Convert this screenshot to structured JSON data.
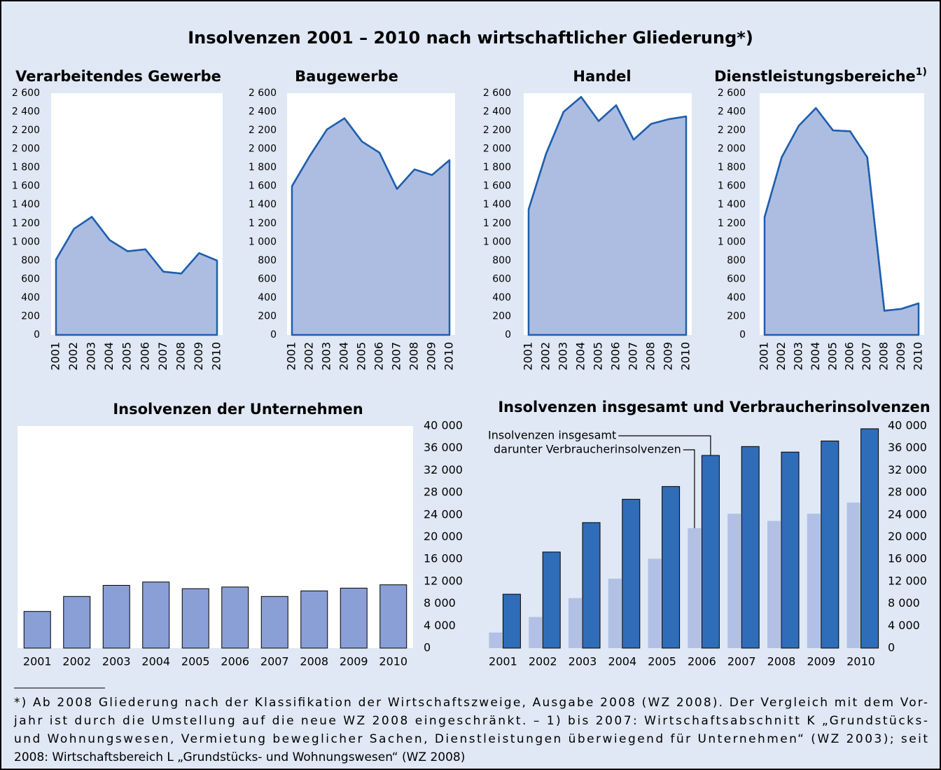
{
  "title": "Insolvenzen 2001 – 2010 nach wirtschaftlicher Gliederung*)",
  "footnote": [
    "*) Ab 2008 Gliederung nach der Klassifikation der Wirtschaftszweige, Ausgabe 2008 (WZ 2008). Der Vergleich mit dem Vor-",
    "jahr ist durch die Umstellung auf die neue WZ 2008 eingeschränkt. – 1) bis 2007: Wirtschaftsabschnitt K „Grundstücks-",
    "und Wohnungswesen, Vermietung beweglicher Sachen, Dienstleistungen überwiegend für Unternehmen“ (WZ 2003); seit",
    "2008: Wirtschaftsbereich L „Grundstücks- und Wohnungswesen“ (WZ 2008)"
  ],
  "chart_data": [
    {
      "type": "area",
      "title": "Verarbeitendes Gewerbe",
      "categories": [
        "2001",
        "2002",
        "2003",
        "2004",
        "2005",
        "2006",
        "2007",
        "2008",
        "2009",
        "2010"
      ],
      "values": [
        810,
        1140,
        1270,
        1020,
        900,
        920,
        680,
        660,
        880,
        800
      ],
      "color": "#adbde1",
      "line_color": "#1f5fad",
      "ylim": [
        0,
        2600
      ],
      "yticks": [
        0,
        200,
        400,
        600,
        800,
        {
          "value": 1000,
          "label": "1 000"
        },
        {
          "value": 1200,
          "label": "1 200"
        },
        {
          "value": 1400,
          "label": "1 400"
        },
        {
          "value": 1600,
          "label": "1 600"
        },
        {
          "value": 1800,
          "label": "1 800"
        },
        {
          "value": 2000,
          "label": "2 000"
        },
        {
          "value": 2200,
          "label": "2 200"
        },
        {
          "value": 2400,
          "label": "2 400"
        },
        {
          "value": 2600,
          "label": "2 600"
        }
      ]
    },
    {
      "type": "area",
      "title": "Baugewerbe",
      "categories": [
        "2001",
        "2002",
        "2003",
        "2004",
        "2005",
        "2006",
        "2007",
        "2008",
        "2009",
        "2010"
      ],
      "values": [
        1600,
        1920,
        2210,
        2330,
        2080,
        1960,
        1570,
        1780,
        1720,
        1880
      ],
      "color": "#adbde1",
      "line_color": "#1f5fad",
      "ylim": [
        0,
        2600
      ],
      "yticks": [
        0,
        200,
        400,
        600,
        800,
        {
          "value": 1000,
          "label": "1 000"
        },
        {
          "value": 1200,
          "label": "1 200"
        },
        {
          "value": 1400,
          "label": "1 400"
        },
        {
          "value": 1600,
          "label": "1 600"
        },
        {
          "value": 1800,
          "label": "1 800"
        },
        {
          "value": 2000,
          "label": "2 000"
        },
        {
          "value": 2200,
          "label": "2 200"
        },
        {
          "value": 2400,
          "label": "2 400"
        },
        {
          "value": 2600,
          "label": "2 600"
        }
      ]
    },
    {
      "type": "area",
      "title": "Handel",
      "categories": [
        "2001",
        "2002",
        "2003",
        "2004",
        "2005",
        "2006",
        "2007",
        "2008",
        "2009",
        "2010"
      ],
      "values": [
        1350,
        1950,
        2400,
        2560,
        2300,
        2470,
        2100,
        2270,
        2320,
        2350
      ],
      "color": "#adbde1",
      "line_color": "#1f5fad",
      "ylim": [
        0,
        2600
      ],
      "yticks": [
        0,
        200,
        400,
        600,
        800,
        {
          "value": 1000,
          "label": "1 000"
        },
        {
          "value": 1200,
          "label": "1 200"
        },
        {
          "value": 1400,
          "label": "1 400"
        },
        {
          "value": 1600,
          "label": "1 600"
        },
        {
          "value": 1800,
          "label": "1 800"
        },
        {
          "value": 2000,
          "label": "2 000"
        },
        {
          "value": 2200,
          "label": "2 200"
        },
        {
          "value": 2400,
          "label": "2 400"
        },
        {
          "value": 2600,
          "label": "2 600"
        }
      ]
    },
    {
      "type": "area",
      "title": "Dienstleistungsbereiche",
      "title_superscript": "1)",
      "categories": [
        "2001",
        "2002",
        "2003",
        "2004",
        "2005",
        "2006",
        "2007",
        "2008",
        "2009",
        "2010"
      ],
      "values": [
        1266,
        1910,
        2250,
        2440,
        2200,
        2190,
        1910,
        260,
        280,
        340
      ],
      "color": "#adbde1",
      "line_color": "#1f5fad",
      "ylim": [
        0,
        2600
      ],
      "yticks": [
        0,
        200,
        400,
        600,
        800,
        {
          "value": 1000,
          "label": "1 000"
        },
        {
          "value": 1200,
          "label": "1 200"
        },
        {
          "value": 1400,
          "label": "1 400"
        },
        {
          "value": 1600,
          "label": "1 600"
        },
        {
          "value": 1800,
          "label": "1 800"
        },
        {
          "value": 2000,
          "label": "2 000"
        },
        {
          "value": 2200,
          "label": "2 200"
        },
        {
          "value": 2400,
          "label": "2 400"
        },
        {
          "value": 2600,
          "label": "2 600"
        }
      ]
    },
    {
      "type": "bar",
      "title": "Insolvenzen der Unternehmen",
      "categories": [
        "2001",
        "2002",
        "2003",
        "2004",
        "2005",
        "2006",
        "2007",
        "2008",
        "2009",
        "2010"
      ],
      "values": [
        6600,
        9300,
        11300,
        11900,
        10700,
        11000,
        9300,
        10300,
        10800,
        11400
      ],
      "color": "#8a9fd6",
      "ylim": [
        0,
        40000
      ],
      "yticks": [
        0,
        {
          "value": 4000,
          "label": "4 000"
        },
        {
          "value": 8000,
          "label": "8 000"
        },
        {
          "value": 12000,
          "label": "12 000"
        },
        {
          "value": 16000,
          "label": "16 000"
        },
        {
          "value": 20000,
          "label": "20 000"
        },
        {
          "value": 24000,
          "label": "24 000"
        },
        {
          "value": 28000,
          "label": "28 000"
        },
        {
          "value": 32000,
          "label": "32 000"
        },
        {
          "value": 36000,
          "label": "36 000"
        },
        {
          "value": 40000,
          "label": "40 000"
        }
      ]
    },
    {
      "type": "grouped_bar",
      "title": "Insolvenzen insgesamt und Verbraucherinsolvenzen",
      "categories": [
        "2001",
        "2002",
        "2003",
        "2004",
        "2005",
        "2006",
        "2007",
        "2008",
        "2009",
        "2010"
      ],
      "series": [
        {
          "name": "Insolvenzen insgesamt",
          "color": "#2f6db8",
          "values": [
            9700,
            17300,
            22600,
            26800,
            29100,
            34700,
            36300,
            35300,
            37300,
            39500
          ]
        },
        {
          "name": "darunter Verbraucherinsolvenzen",
          "color": "#b1c0e4",
          "values": [
            2800,
            5600,
            9000,
            12500,
            16100,
            21600,
            24200,
            22900,
            24200,
            26200
          ]
        }
      ],
      "ylim": [
        0,
        40000
      ],
      "yticks": [
        0,
        {
          "value": 4000,
          "label": "4 000"
        },
        {
          "value": 8000,
          "label": "8 000"
        },
        {
          "value": 12000,
          "label": "12 000"
        },
        {
          "value": 16000,
          "label": "16 000"
        },
        {
          "value": 20000,
          "label": "20 000"
        },
        {
          "value": 24000,
          "label": "24 000"
        },
        {
          "value": 28000,
          "label": "28 000"
        },
        {
          "value": 32000,
          "label": "32 000"
        },
        {
          "value": 36000,
          "label": "36 000"
        },
        {
          "value": 40000,
          "label": "40 000"
        }
      ]
    }
  ]
}
